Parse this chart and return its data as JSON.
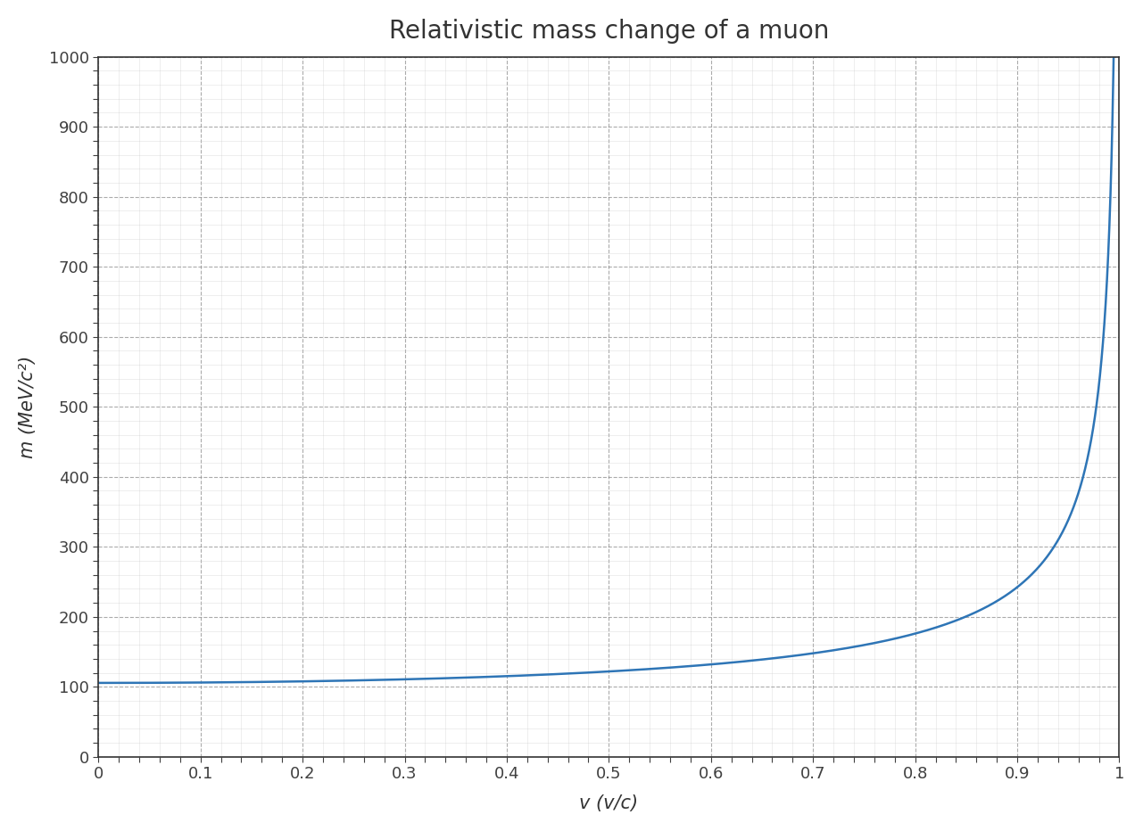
{
  "title": "Relativistic mass change of a muon",
  "xlabel": "v (v/c)",
  "ylabel": "m (MeV/c²)",
  "muon_rest_mass_MeV": 105.66,
  "xlim": [
    0,
    1
  ],
  "ylim": [
    0,
    1000
  ],
  "xticks": [
    0,
    0.1,
    0.2,
    0.3,
    0.4,
    0.5,
    0.6,
    0.7,
    0.8,
    0.9,
    1.0
  ],
  "yticks": [
    0,
    100,
    200,
    300,
    400,
    500,
    600,
    700,
    800,
    900,
    1000
  ],
  "line_color": "#2E75B6",
  "line_width": 1.8,
  "background_color": "#FFFFFF",
  "plot_bg_color": "#FFFFFF",
  "major_grid_color": "#888888",
  "minor_grid_color": "#CCCCCC",
  "title_fontsize": 20,
  "label_fontsize": 15,
  "tick_fontsize": 13,
  "tick_color": "#404040",
  "spine_color": "#333333",
  "v_max": 0.9999
}
